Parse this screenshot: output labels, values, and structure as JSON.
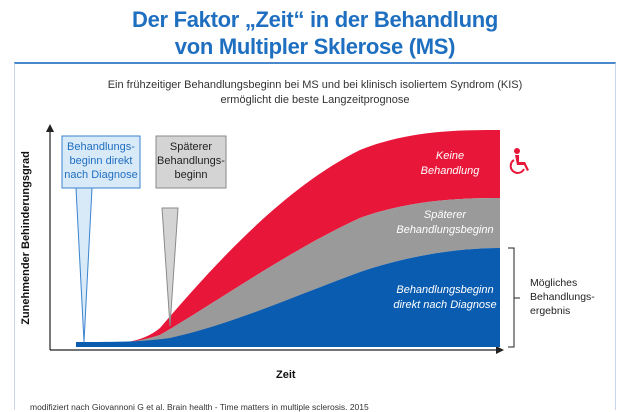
{
  "header": {
    "title_line1": "Der Faktor „Zeit“ in der Behandlung",
    "title_line2": "von Multipler Sklerose (MS)"
  },
  "footnote": "modifiziert nach Giovannoni G et al. Brain health - Time matters in multiple sclerosis. 2015",
  "chart_data": {
    "type": "area",
    "title": "Ein frühzeitiger Behandlungsbeginn bei MS und bei klinisch isoliertem Syndrom (KIS)\nermöglicht die beste Langzeitprognose",
    "xlabel": "Zeit",
    "ylabel": "Zunehmender Behinderungsgrad",
    "legend_placement": "inside bands",
    "grid": false,
    "series": [
      {
        "name": "Keine\nBehandlung",
        "color": "#e8173a"
      },
      {
        "name": "Späterer\nBehandlungsbeginn",
        "color": "#9a9a9a"
      },
      {
        "name": "Behandlungsbeginn\ndirekt nach Diagnose",
        "color": "#0a5cb0"
      }
    ],
    "callouts": [
      {
        "label": "Behandlungs-\nbeginn direkt\nnach Diagnose",
        "color": "#d8e9f8",
        "border": "#3a83cf",
        "text_color": "#1f6fc0"
      },
      {
        "label": "Späterer\nBehandlungs-\nbeginn",
        "color": "#d4d4d4",
        "border": "#8a8a8a",
        "text_color": "#222222"
      }
    ],
    "bracket_label": "Mögliches\nBehandlungs-\nergebnis",
    "icons": [
      "wheelchair-icon"
    ],
    "colors": {
      "red": "#e8173a",
      "gray": "#9a9a9a",
      "blue": "#0a5cb0",
      "accent": "#1f6fc0"
    }
  }
}
